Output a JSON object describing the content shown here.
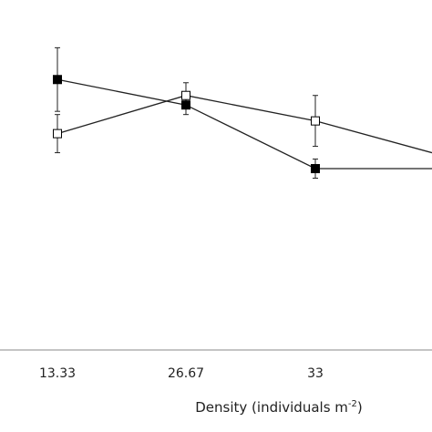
{
  "chart_data": {
    "type": "line",
    "title": "",
    "xlabel": "Density (individuals m",
    "xlabel_sup": "-2",
    "xlabel_close": ")",
    "ylabel": "",
    "categories": [
      "13.33",
      "26.67",
      "33",
      ""
    ],
    "series": [
      {
        "marker": "filled-square",
        "color": "#000000",
        "values": [
          0.85,
          0.77,
          0.57,
          0.57
        ],
        "errors": [
          0.1,
          0.03,
          0.03,
          null
        ]
      },
      {
        "marker": "open-square",
        "color": "#000000",
        "values": [
          0.68,
          0.8,
          0.72,
          0.62
        ],
        "errors": [
          0.06,
          0.04,
          0.08,
          null
        ]
      }
    ],
    "ylim": [
      0,
      1.1
    ],
    "grid": false,
    "legend": "none"
  }
}
